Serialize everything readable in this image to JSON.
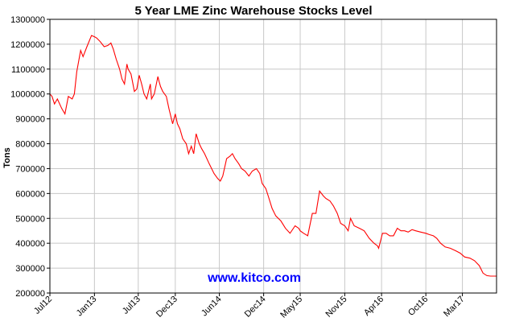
{
  "colors": {
    "line": "#ff0000",
    "grid": "#c8c8c8",
    "frame": "#000000",
    "watermark": "#0000ff"
  },
  "watermark": "www.kitco.com",
  "chart_data": {
    "type": "line",
    "title": "5 Year LME Zinc Warehouse Stocks Level",
    "xlabel": "",
    "ylabel": "Tons",
    "ylim": [
      200000,
      1300000
    ],
    "yticks": [
      200000,
      300000,
      400000,
      500000,
      600000,
      700000,
      800000,
      900000,
      1000000,
      1100000,
      1200000,
      1300000
    ],
    "xtick_labels": [
      "Jul12",
      "Jan13",
      "Jul13",
      "Dec13",
      "Jun14",
      "Dec14",
      "May15",
      "Nov15",
      "Apr16",
      "Oct16",
      "Mar17"
    ],
    "xtick_dates": [
      "2012-07-01",
      "2013-01-01",
      "2013-07-01",
      "2013-12-01",
      "2014-06-01",
      "2014-12-01",
      "2015-05-01",
      "2015-11-01",
      "2016-04-01",
      "2016-10-01",
      "2017-03-01"
    ],
    "xlim": [
      "2012-07-01",
      "2017-07-20"
    ],
    "grid": true,
    "legend": "none",
    "series": [
      {
        "x": [
          "2012-07-01",
          "2012-07-10",
          "2012-07-20",
          "2012-08-01",
          "2012-08-15",
          "2012-08-20",
          "2012-09-01",
          "2012-09-15",
          "2012-10-01",
          "2012-10-10",
          "2012-10-20",
          "2012-11-05",
          "2012-11-15",
          "2012-12-01",
          "2012-12-20",
          "2013-01-01",
          "2013-01-10",
          "2013-01-25",
          "2013-02-10",
          "2013-02-25",
          "2013-03-10",
          "2013-03-20",
          "2013-04-01",
          "2013-04-15",
          "2013-04-25",
          "2013-05-05",
          "2013-05-15",
          "2013-05-20",
          "2013-06-01",
          "2013-06-15",
          "2013-06-25",
          "2013-07-05",
          "2013-07-15",
          "2013-07-25",
          "2013-08-05",
          "2013-08-20",
          "2013-08-25",
          "2013-09-05",
          "2013-09-20",
          "2013-09-25",
          "2013-10-01",
          "2013-10-10",
          "2013-10-25",
          "2013-11-05",
          "2013-11-20",
          "2013-12-01",
          "2013-12-10",
          "2013-12-20",
          "2014-01-01",
          "2014-01-15",
          "2014-01-25",
          "2014-02-05",
          "2014-02-15",
          "2014-02-25",
          "2014-03-10",
          "2014-03-20",
          "2014-04-01",
          "2014-04-20",
          "2014-05-10",
          "2014-05-25",
          "2014-06-05",
          "2014-06-15",
          "2014-07-01",
          "2014-07-15",
          "2014-07-25",
          "2014-08-05",
          "2014-08-20",
          "2014-09-01",
          "2014-09-15",
          "2014-10-01",
          "2014-10-15",
          "2014-11-01",
          "2014-11-15",
          "2014-11-25",
          "2014-12-10",
          "2014-12-20",
          "2015-01-05",
          "2015-01-20",
          "2015-02-10",
          "2015-03-01",
          "2015-03-20",
          "2015-04-10",
          "2015-04-25",
          "2015-05-01",
          "2015-05-15",
          "2015-06-01",
          "2015-06-20",
          "2015-07-05",
          "2015-07-20",
          "2015-08-05",
          "2015-08-15",
          "2015-09-01",
          "2015-09-15",
          "2015-10-01",
          "2015-10-15",
          "2015-11-01",
          "2015-11-15",
          "2015-11-25",
          "2015-12-10",
          "2016-01-01",
          "2016-01-20",
          "2016-02-10",
          "2016-03-01",
          "2016-03-15",
          "2016-03-20",
          "2016-04-05",
          "2016-04-20",
          "2016-05-05",
          "2016-05-20",
          "2016-06-05",
          "2016-06-20",
          "2016-07-05",
          "2016-07-20",
          "2016-08-05",
          "2016-08-20",
          "2016-09-10",
          "2016-10-01",
          "2016-10-15",
          "2016-11-01",
          "2016-11-15",
          "2016-12-01",
          "2016-12-20",
          "2017-01-10",
          "2017-02-01",
          "2017-02-20",
          "2017-03-10",
          "2017-04-01",
          "2017-04-20",
          "2017-05-10",
          "2017-05-25",
          "2017-06-10",
          "2017-06-25",
          "2017-07-05",
          "2017-07-20"
        ],
        "y": [
          1000000,
          990000,
          960000,
          980000,
          950000,
          940000,
          920000,
          990000,
          980000,
          1000000,
          1090000,
          1175000,
          1150000,
          1190000,
          1235000,
          1230000,
          1225000,
          1210000,
          1190000,
          1195000,
          1205000,
          1180000,
          1140000,
          1100000,
          1060000,
          1040000,
          1120000,
          1100000,
          1080000,
          1010000,
          1020000,
          1075000,
          1040000,
          1000000,
          980000,
          1040000,
          980000,
          1000000,
          1070000,
          1050000,
          1030000,
          1010000,
          990000,
          940000,
          880000,
          920000,
          880000,
          860000,
          820000,
          800000,
          760000,
          790000,
          760000,
          840000,
          800000,
          780000,
          760000,
          720000,
          680000,
          660000,
          650000,
          670000,
          740000,
          750000,
          760000,
          740000,
          720000,
          700000,
          690000,
          670000,
          690000,
          700000,
          680000,
          640000,
          620000,
          590000,
          540000,
          510000,
          490000,
          460000,
          440000,
          470000,
          460000,
          450000,
          440000,
          430000,
          520000,
          520000,
          610000,
          590000,
          580000,
          570000,
          550000,
          520000,
          480000,
          470000,
          450000,
          500000,
          470000,
          460000,
          450000,
          420000,
          400000,
          390000,
          380000,
          440000,
          440000,
          430000,
          430000,
          460000,
          450000,
          450000,
          445000,
          455000,
          450000,
          445000,
          440000,
          435000,
          430000,
          420000,
          400000,
          385000,
          380000,
          370000,
          360000,
          345000,
          340000,
          330000,
          310000,
          280000,
          270000,
          268000,
          268000,
          268000
        ]
      }
    ]
  }
}
